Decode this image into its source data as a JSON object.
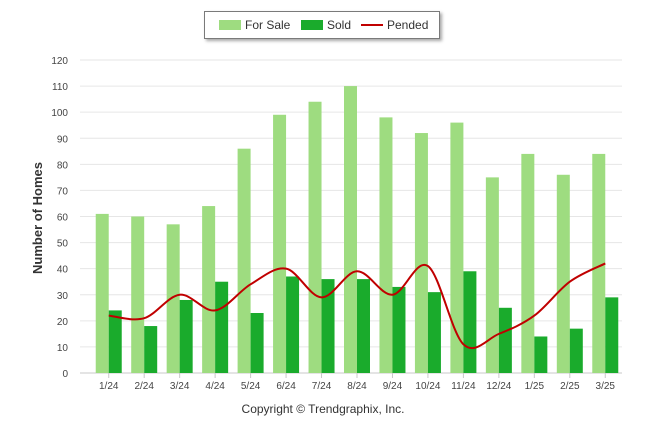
{
  "chart_data": {
    "type": "bar",
    "categories": [
      "1/24",
      "2/24",
      "3/24",
      "4/24",
      "5/24",
      "6/24",
      "7/24",
      "8/24",
      "9/24",
      "10/24",
      "11/24",
      "12/24",
      "1/25",
      "2/25",
      "3/25"
    ],
    "series": [
      {
        "name": "For Sale",
        "kind": "bar",
        "color": "#9edc80",
        "values": [
          61,
          60,
          57,
          64,
          86,
          99,
          104,
          110,
          98,
          92,
          96,
          75,
          84,
          76,
          84
        ]
      },
      {
        "name": "Sold",
        "kind": "bar",
        "color": "#1aab2c",
        "values": [
          24,
          18,
          28,
          35,
          23,
          37,
          36,
          36,
          33,
          31,
          39,
          25,
          14,
          17,
          29
        ]
      },
      {
        "name": "Pended",
        "kind": "line",
        "color": "#c00000",
        "values": [
          22,
          21,
          30,
          24,
          34,
          40,
          29,
          39,
          30,
          41,
          11,
          15,
          22,
          35,
          42
        ]
      }
    ],
    "ylabel": "Number of Homes",
    "xlabel": "",
    "ylim": [
      0,
      120
    ],
    "yticks": [
      0,
      10,
      20,
      30,
      40,
      50,
      60,
      70,
      80,
      90,
      100,
      110,
      120
    ],
    "grid": true,
    "legend": "top-center"
  },
  "footer": "Copyright © Trendgraphix, Inc."
}
